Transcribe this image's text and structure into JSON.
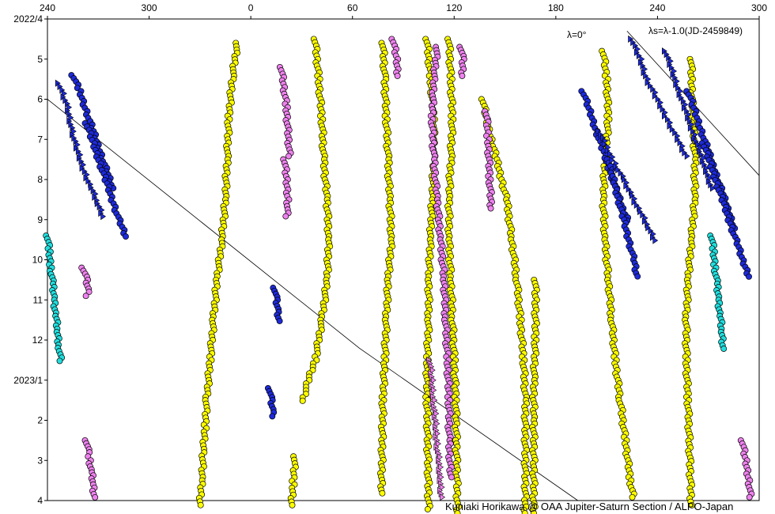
{
  "chart_data": {
    "type": "scatter",
    "x_axis": {
      "ticks": [
        "240",
        "300",
        "0",
        "60",
        "120",
        "180",
        "240",
        "300"
      ],
      "values": [
        240,
        300,
        360,
        420,
        480,
        540,
        600,
        660
      ],
      "range": [
        240,
        660
      ],
      "position": "top"
    },
    "y_axis": {
      "ticks": [
        "2022/4",
        "5",
        "6",
        "7",
        "8",
        "9",
        "10",
        "11",
        "12",
        "2023/1",
        "2",
        "3",
        "4"
      ],
      "range": [
        "2022-04-01",
        "2023-04-01"
      ],
      "reversed": true
    },
    "annotation_reference": "λs=λ-1.0(JD-2459849)",
    "annotation_line_label": "λ=0°",
    "reference_lines": [
      {
        "label": "λ=0°",
        "points": [
          [
            240,
            6.0
          ],
          [
            424,
            12.2
          ],
          [
            553,
            16.0
          ]
        ]
      },
      {
        "points": [
          [
            582,
            4.3
          ],
          [
            660,
            7.9
          ]
        ]
      }
    ],
    "grid": false,
    "credit": "Kuniaki Horikawa @ OAA Jupiter-Saturn Section / ALPO-Japan",
    "series": [
      {
        "marker": "circle",
        "color": "#ffff00",
        "tracks": [
          {
            "x": [
              352,
              349,
              347,
              346,
              345,
              343,
              340,
              338,
              336,
              334
            ],
            "y": [
              4.6,
              5.5,
              6.5,
              7.5,
              8.5,
              9.5,
              10.5,
              11.5,
              12.5,
              13.5
            ]
          },
          {
            "x": [
              334,
              333,
              332,
              331,
              330
            ],
            "y": [
              13.5,
              14.2,
              14.8,
              15.5,
              16.2
            ]
          },
          {
            "x": [
              398,
              400,
              402,
              403,
              405,
              406,
              405,
              402,
              398,
              394,
              390
            ],
            "y": [
              4.5,
              5.5,
              6.5,
              7.5,
              8.5,
              9.5,
              10.5,
              11.5,
              12.5,
              13.0,
              13.6
            ]
          },
          {
            "x": [
              386,
              385,
              384
            ],
            "y": [
              14.9,
              15.6,
              16.2
            ]
          },
          {
            "x": [
              438,
              439,
              440,
              441,
              442,
              443,
              441,
              440,
              439,
              438,
              437
            ],
            "y": [
              4.6,
              5.5,
              6.5,
              7.5,
              8.5,
              9.5,
              10.5,
              11.5,
              12.5,
              13.5,
              15.9
            ]
          },
          {
            "x": [
              464,
              466,
              468,
              468,
              467,
              466,
              465,
              465,
              464,
              464,
              465
            ],
            "y": [
              4.5,
              5.5,
              6.5,
              7.5,
              8.5,
              9.5,
              10.5,
              11.5,
              12.5,
              13.5,
              16.3
            ]
          },
          {
            "x": [
              477,
              478,
              479,
              478,
              477,
              477,
              478,
              479,
              480,
              481,
              482
            ],
            "y": [
              4.5,
              5.5,
              6.5,
              7.5,
              8.5,
              9.5,
              10.5,
              11.5,
              12.5,
              13.5,
              16.4
            ]
          },
          {
            "x": [
              497,
              499,
              502,
              505,
              508,
              511,
              514,
              517,
              519,
              521,
              522,
              522
            ],
            "y": [
              6.0,
              6.5,
              7.0,
              7.5,
              8.0,
              8.5,
              9.5,
              10.5,
              11.5,
              12.5,
              13.5,
              16.4
            ]
          },
          {
            "x": [
              528,
              528,
              528,
              527,
              527,
              527
            ],
            "y": [
              10.5,
              11.0,
              12.0,
              13.0,
              14.0,
              16.4
            ]
          },
          {
            "x": [
              568,
              570,
              571,
              569,
              568,
              569,
              571,
              573,
              575,
              578
            ],
            "y": [
              4.8,
              5.5,
              6.5,
              7.5,
              8.5,
              9.5,
              10.5,
              11.5,
              12.5,
              13.5
            ]
          },
          {
            "x": [
              578,
              581,
              584,
              586
            ],
            "y": [
              13.5,
              14.5,
              15.5,
              16.0
            ]
          },
          {
            "x": [
              620,
              620,
              621,
              622,
              622,
              620,
              618,
              617,
              617,
              618,
              620
            ],
            "y": [
              5.0,
              5.5,
              6.5,
              7.5,
              8.5,
              9.5,
              10.5,
              11.5,
              12.5,
              13.5,
              16.2
            ]
          }
        ]
      },
      {
        "marker": "circle",
        "color": "#ee82ee",
        "tracks": [
          {
            "x": [
              378,
              381,
              383
            ],
            "y": [
              5.2,
              6.2,
              7.5
            ]
          },
          {
            "x": [
              380,
              381,
              382,
              381
            ],
            "y": [
              7.5,
              8.0,
              8.5,
              9.0
            ]
          },
          {
            "x": [
              444,
              446,
              447
            ],
            "y": [
              4.5,
              5.0,
              5.5
            ]
          },
          {
            "x": [
              470,
              468,
              467,
              468,
              470,
              472,
              474,
              475,
              476,
              477,
              477,
              478
            ],
            "y": [
              4.7,
              5.5,
              6.5,
              7.5,
              8.5,
              9.5,
              10.5,
              11.5,
              12.5,
              13.5,
              14.5,
              15.5
            ]
          },
          {
            "x": [
              484,
              485,
              485
            ],
            "y": [
              4.7,
              5.0,
              5.5
            ]
          },
          {
            "x": [
              499,
              500,
              501,
              502
            ],
            "y": [
              6.3,
              7.0,
              8.0,
              8.8
            ]
          },
          {
            "x": [
              261,
              263,
              264,
              263
            ],
            "y": [
              10.2,
              10.5,
              10.8,
              11.0
            ]
          },
          {
            "x": [
              263,
              264,
              265,
              266,
              267,
              268
            ],
            "y": [
              14.5,
              14.8,
              15.0,
              15.3,
              15.6,
              16.0
            ]
          },
          {
            "x": [
              650,
              652,
              654,
              655
            ],
            "y": [
              14.5,
              15.0,
              15.5,
              16.0
            ]
          }
        ]
      },
      {
        "marker": "circle",
        "color": "#1e2bd8",
        "tracks": [
          {
            "x": [
              255,
              259,
              263,
              267,
              271,
              275,
              279
            ],
            "y": [
              5.4,
              5.8,
              6.3,
              6.8,
              7.3,
              7.8,
              8.3
            ]
          },
          {
            "x": [
              263,
              267,
              271,
              275,
              279,
              283,
              287
            ],
            "y": [
              6.6,
              7.1,
              7.6,
              8.1,
              8.6,
              9.1,
              9.5
            ]
          },
          {
            "x": [
              556,
              560,
              564,
              568,
              572,
              576,
              580,
              584
            ],
            "y": [
              5.8,
              6.3,
              6.8,
              7.3,
              7.8,
              8.3,
              8.8,
              9.1
            ]
          },
          {
            "x": [
              571,
              574,
              577,
              580,
              583,
              586,
              588
            ],
            "y": [
              7.5,
              8.0,
              8.5,
              9.0,
              9.5,
              10.0,
              10.5
            ]
          },
          {
            "x": [
              618,
              622,
              626,
              630,
              634,
              638,
              642,
              646
            ],
            "y": [
              5.8,
              6.3,
              6.8,
              7.3,
              7.8,
              8.3,
              8.8,
              9.3
            ]
          },
          {
            "x": [
              627,
              631,
              635,
              639,
              643,
              647,
              651,
              655
            ],
            "y": [
              7.1,
              7.6,
              8.1,
              8.6,
              9.1,
              9.6,
              10.1,
              10.5
            ]
          },
          {
            "x": [
              374,
              375,
              376,
              377
            ],
            "y": [
              10.7,
              11.0,
              11.3,
              11.6
            ]
          },
          {
            "x": [
              371,
              372,
              373,
              374
            ],
            "y": [
              13.2,
              13.5,
              13.8,
              14.0
            ]
          }
        ]
      },
      {
        "marker": "circle",
        "color": "#22dddd",
        "tracks": [
          {
            "x": [
              240,
              241,
              242,
              243,
              244,
              245,
              246,
              247,
              248
            ],
            "y": [
              9.4,
              9.8,
              10.2,
              10.6,
              11.0,
              11.4,
              11.8,
              12.2,
              12.6
            ]
          },
          {
            "x": [
              632,
              633,
              634,
              635,
              636,
              637,
              638,
              639
            ],
            "y": [
              9.4,
              9.8,
              10.2,
              10.6,
              11.0,
              11.4,
              11.8,
              12.3
            ]
          }
        ]
      },
      {
        "marker": "triangle",
        "color": "#1e2bd8",
        "tracks": [
          {
            "x": [
              247,
              252,
              255,
              258,
              262,
              266,
              270,
              274
            ],
            "y": [
              5.6,
              6.2,
              6.8,
              7.3,
              7.8,
              8.2,
              8.6,
              9.0
            ]
          },
          {
            "x": [
              566,
              570,
              575,
              580,
              585,
              590,
              595,
              600
            ],
            "y": [
              6.8,
              7.2,
              7.6,
              8.0,
              8.4,
              8.8,
              9.2,
              9.6
            ]
          },
          {
            "x": [
              585,
              590,
              594,
              600,
              606,
              612,
              618
            ],
            "y": [
              4.5,
              5.0,
              5.5,
              6.0,
              6.5,
              7.0,
              7.5
            ]
          },
          {
            "x": [
              605,
              609,
              613,
              617,
              621,
              625,
              629,
              633
            ],
            "y": [
              4.8,
              5.3,
              5.8,
              6.3,
              6.8,
              7.3,
              7.8,
              8.3
            ]
          }
        ]
      },
      {
        "marker": "triangle",
        "color": "#ee82ee",
        "tracks": [
          {
            "x": [
              466,
              467,
              468,
              469,
              470,
              471,
              472,
              473
            ],
            "y": [
              12.5,
              13.0,
              13.5,
              14.0,
              14.5,
              15.0,
              15.5,
              16.0
            ]
          }
        ]
      }
    ]
  }
}
